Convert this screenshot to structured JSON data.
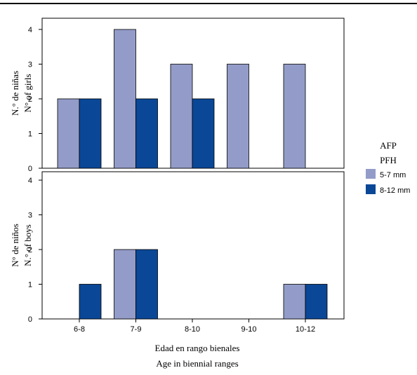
{
  "chart_data": {
    "type": "bar",
    "categories": [
      "6-8",
      "7-9",
      "8-10",
      "9-10",
      "10-12"
    ],
    "xlabel": [
      "Edad en rango bienales",
      "Age in biennial ranges"
    ],
    "colors": {
      "5-7 mm": "#939cc8",
      "8-12 mm": "#0a4797"
    },
    "legend": {
      "placement": "right",
      "title_lines": [
        "AFP",
        "PFH"
      ],
      "entries": [
        "5-7 mm",
        "8-12 mm"
      ]
    },
    "panels": [
      {
        "name": "girls",
        "ylabel": [
          "N.° de niñas",
          "N° of girls"
        ],
        "ylim": [
          0,
          4
        ],
        "yticks": [
          0,
          1,
          2,
          3,
          4
        ],
        "series": [
          {
            "name": "5-7 mm",
            "values": [
              2,
              4,
              3,
              3,
              3
            ]
          },
          {
            "name": "8-12 mm",
            "values": [
              2,
              2,
              2,
              0,
              0
            ]
          }
        ]
      },
      {
        "name": "boys",
        "ylabel": [
          "N° de niños",
          "N.° of boys"
        ],
        "ylim": [
          0,
          4
        ],
        "yticks": [
          0,
          1,
          2,
          3,
          4
        ],
        "series": [
          {
            "name": "5-7 mm",
            "values": [
              0,
              2,
              0,
              0,
              1
            ]
          },
          {
            "name": "8-12 mm",
            "values": [
              1,
              2,
              0,
              0,
              1
            ]
          }
        ]
      }
    ]
  }
}
